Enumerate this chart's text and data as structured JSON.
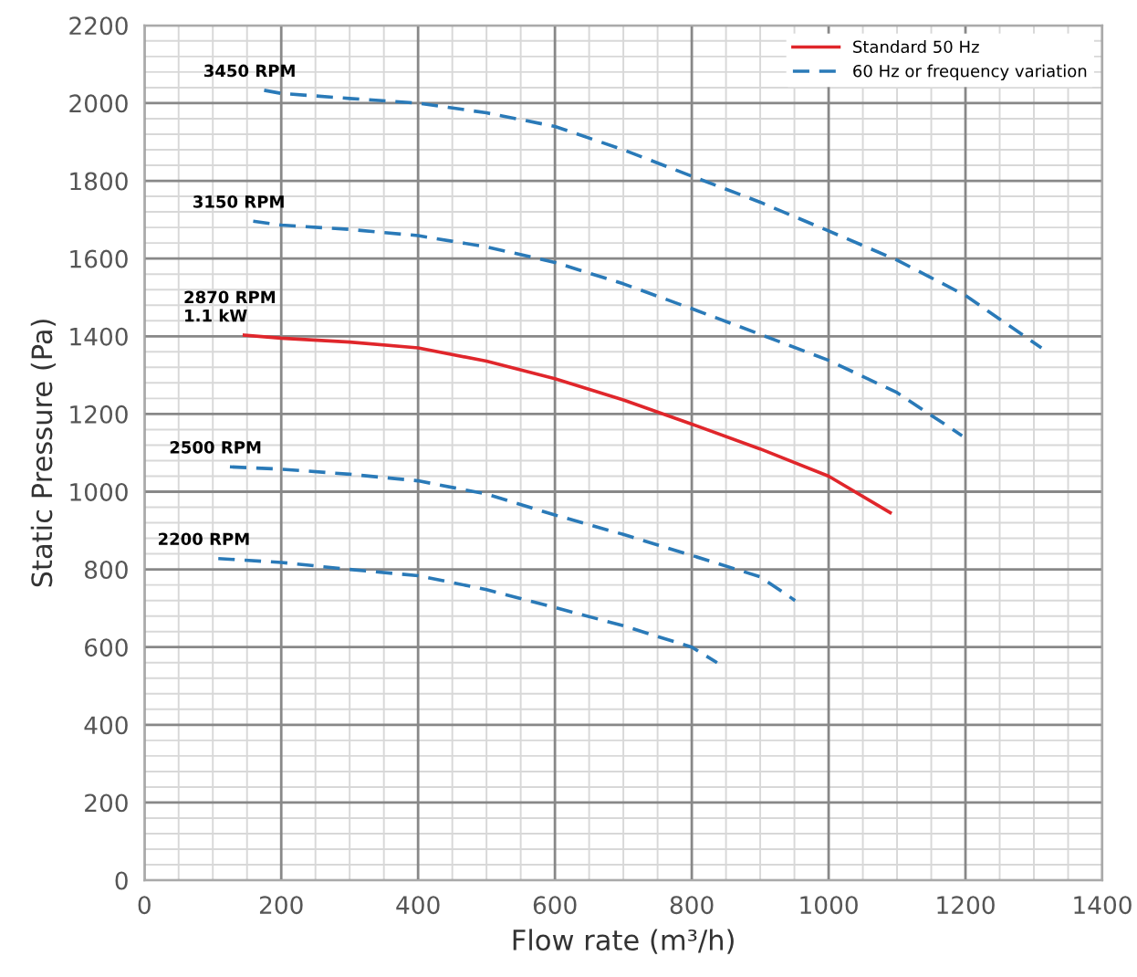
{
  "chart_data": {
    "type": "line",
    "xlabel": "Flow rate (m³/h)",
    "ylabel": "Static Pressure (Pa)",
    "xlim": [
      0,
      1400
    ],
    "ylim": [
      0,
      2200
    ],
    "xticks": [
      0,
      {
        "value": 50,
        "label": null
      },
      {
        "value": 100,
        "label": null
      },
      {
        "value": 150,
        "label": null
      },
      200,
      {
        "value": 250,
        "label": null
      },
      {
        "value": 300,
        "label": null
      },
      {
        "value": 350,
        "label": null
      },
      400,
      {
        "value": 450,
        "label": null
      },
      {
        "value": 500,
        "label": null
      },
      {
        "value": 550,
        "label": null
      },
      600,
      {
        "value": 650,
        "label": null
      },
      {
        "value": 700,
        "label": null
      },
      {
        "value": 750,
        "label": null
      },
      800,
      {
        "value": 850,
        "label": null
      },
      {
        "value": 900,
        "label": null
      },
      {
        "value": 950,
        "label": null
      },
      1000,
      {
        "value": 1050,
        "label": null
      },
      {
        "value": 1100,
        "label": null
      },
      {
        "value": 1150,
        "label": null
      },
      1200,
      {
        "value": 1250,
        "label": null
      },
      {
        "value": 1300,
        "label": null
      },
      {
        "value": 1350,
        "label": null
      },
      1400
    ],
    "yticks": [
      0,
      {
        "value": 40,
        "label": null
      },
      {
        "value": 80,
        "label": null
      },
      {
        "value": 120,
        "label": null
      },
      {
        "value": 160,
        "label": null
      },
      200,
      {
        "value": 240,
        "label": null
      },
      {
        "value": 280,
        "label": null
      },
      {
        "value": 320,
        "label": null
      },
      {
        "value": 360,
        "label": null
      },
      400,
      {
        "value": 440,
        "label": null
      },
      {
        "value": 480,
        "label": null
      },
      {
        "value": 520,
        "label": null
      },
      {
        "value": 560,
        "label": null
      },
      600,
      {
        "value": 640,
        "label": null
      },
      {
        "value": 680,
        "label": null
      },
      {
        "value": 720,
        "label": null
      },
      {
        "value": 760,
        "label": null
      },
      800,
      {
        "value": 840,
        "label": null
      },
      {
        "value": 880,
        "label": null
      },
      {
        "value": 920,
        "label": null
      },
      {
        "value": 960,
        "label": null
      },
      1000,
      {
        "value": 1040,
        "label": null
      },
      {
        "value": 1080,
        "label": null
      },
      {
        "value": 1120,
        "label": null
      },
      {
        "value": 1160,
        "label": null
      },
      1200,
      {
        "value": 1240,
        "label": null
      },
      {
        "value": 1280,
        "label": null
      },
      {
        "value": 1320,
        "label": null
      },
      {
        "value": 1360,
        "label": null
      },
      1400,
      {
        "value": 1440,
        "label": null
      },
      {
        "value": 1480,
        "label": null
      },
      {
        "value": 1520,
        "label": null
      },
      {
        "value": 1560,
        "label": null
      },
      1600,
      {
        "value": 1640,
        "label": null
      },
      {
        "value": 1680,
        "label": null
      },
      {
        "value": 1720,
        "label": null
      },
      {
        "value": 1760,
        "label": null
      },
      1800,
      {
        "value": 1840,
        "label": null
      },
      {
        "value": 1880,
        "label": null
      },
      {
        "value": 1920,
        "label": null
      },
      {
        "value": 1960,
        "label": null
      },
      2000,
      {
        "value": 2040,
        "label": null
      },
      {
        "value": 2080,
        "label": null
      },
      {
        "value": 2120,
        "label": null
      },
      {
        "value": 2160,
        "label": null
      },
      2200
    ],
    "grid": true,
    "legend": "top right",
    "marker": "none",
    "series": [
      {
        "name": "Standard 50 Hz",
        "color": "#e0262b",
        "line_style": "solid",
        "x": [
          146,
          200,
          300,
          400,
          500,
          600,
          700,
          800,
          900,
          1000,
          1090
        ],
        "values": [
          1403,
          1395,
          1385,
          1370,
          1336,
          1291,
          1236,
          1174,
          1110,
          1040,
          946
        ]
      },
      {
        "name": "60 Hz or frequency variation",
        "color": "#2a7ab8",
        "line_style": "dashed",
        "x": [
          175,
          200,
          300,
          400,
          500,
          600,
          700,
          800,
          900,
          1000,
          1100,
          1200,
          1311
        ],
        "values": [
          2033,
          2025,
          2012,
          2000,
          1975,
          1940,
          1880,
          1812,
          1745,
          1671,
          1596,
          1505,
          1370
        ]
      },
      {
        "color": "#2a7ab8",
        "line_style": "dashed",
        "x": [
          159,
          200,
          300,
          400,
          500,
          600,
          700,
          800,
          900,
          1000,
          1100,
          1195
        ],
        "values": [
          1696,
          1686,
          1675,
          1659,
          1630,
          1590,
          1535,
          1471,
          1405,
          1338,
          1255,
          1144
        ]
      },
      {
        "color": "#2a7ab8",
        "line_style": "dashed",
        "x": [
          125,
          200,
          300,
          400,
          500,
          600,
          700,
          800,
          900,
          951
        ],
        "values": [
          1064,
          1058,
          1045,
          1028,
          994,
          940,
          890,
          836,
          781,
          720
        ]
      },
      {
        "color": "#2a7ab8",
        "line_style": "dashed",
        "x": [
          108,
          200,
          300,
          400,
          500,
          600,
          700,
          800,
          837
        ],
        "values": [
          828,
          818,
          800,
          784,
          748,
          702,
          655,
          600,
          560
        ]
      }
    ],
    "annotations": [
      {
        "text": "3450 RPM",
        "x": 175,
        "y": 2033
      },
      {
        "text": "3150 RPM",
        "x": 159,
        "y": 1696
      },
      {
        "text": "2870 RPM\n1.1 kW",
        "x": 146,
        "y": 1403
      },
      {
        "text": "2500 RPM",
        "x": 125,
        "y": 1064
      },
      {
        "text": "2200 RPM",
        "x": 108,
        "y": 828
      }
    ]
  }
}
